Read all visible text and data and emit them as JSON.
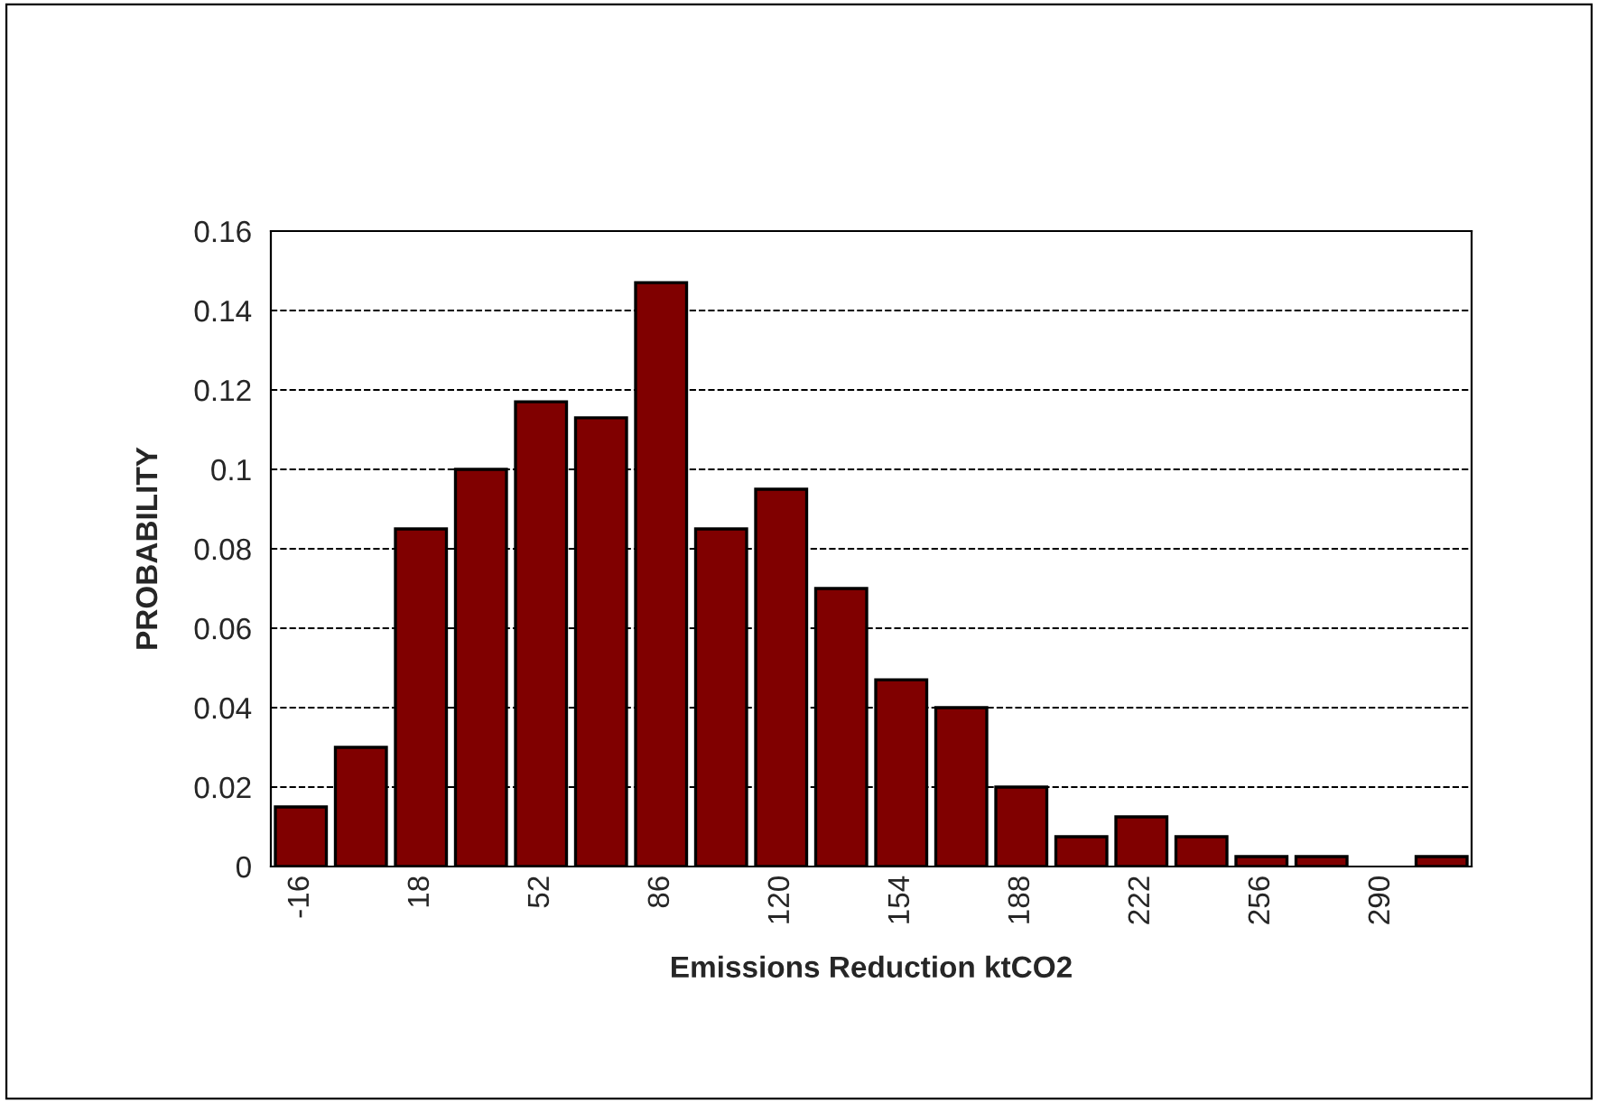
{
  "chart_data": {
    "type": "bar",
    "xlabel": "Emissions Reduction ktCO2",
    "ylabel": "PROBABILITY",
    "categories": [
      "-16",
      null,
      "18",
      null,
      "52",
      null,
      "86",
      null,
      "120",
      null,
      "154",
      null,
      "188",
      null,
      "222",
      null,
      "256",
      null,
      "290",
      null
    ],
    "values": [
      0.015,
      0.03,
      0.085,
      0.1,
      0.117,
      0.113,
      0.147,
      0.085,
      0.095,
      0.07,
      0.047,
      0.04,
      0.02,
      0.0075,
      0.0125,
      0.0075,
      0.0025,
      0.0025,
      0,
      0.0025
    ],
    "color": "#800000",
    "ylim": [
      0,
      0.16
    ],
    "yticks": [
      0,
      0.02,
      0.04,
      0.06,
      0.08,
      0.1,
      0.12,
      0.14,
      0.16
    ],
    "grid": "y",
    "legend": false
  }
}
